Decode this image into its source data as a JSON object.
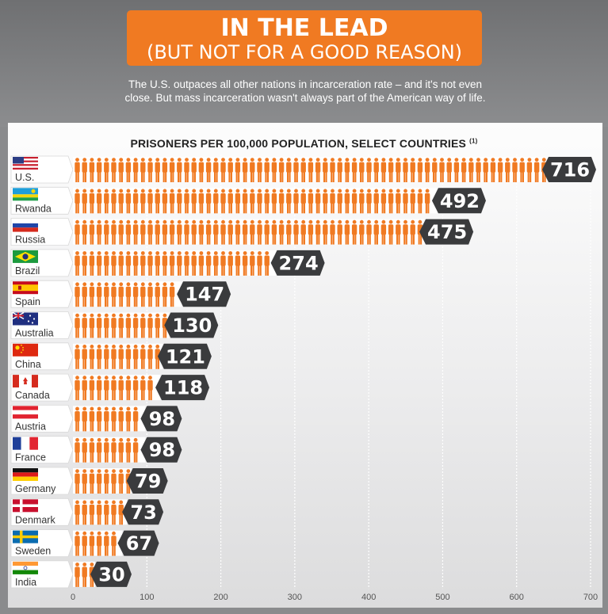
{
  "header": {
    "title": "IN THE LEAD",
    "subtitle": "(BUT NOT FOR A GOOD REASON)",
    "description_line1": "The U.S. outpaces all other nations in incarceration rate – and it's not even",
    "description_line2": "close. But mass incarceration wasn't always part of the American way of life."
  },
  "chart_data": {
    "type": "bar",
    "title": "PRISONERS PER 100,000 POPULATION, SELECT COUNTRIES",
    "title_note": "(1)",
    "categories": [
      "U.S.",
      "Rwanda",
      "Russia",
      "Brazil",
      "Spain",
      "Australia",
      "China",
      "Canada",
      "Austria",
      "France",
      "Germany",
      "Denmark",
      "Sweden",
      "India"
    ],
    "values": [
      716,
      492,
      475,
      274,
      147,
      130,
      121,
      118,
      98,
      98,
      79,
      73,
      67,
      30
    ],
    "xlim": [
      0,
      700
    ],
    "xticks": [
      0,
      100,
      200,
      300,
      400,
      500,
      600,
      700
    ],
    "grid": true,
    "flags": [
      "us",
      "rwanda",
      "russia",
      "brazil",
      "spain",
      "australia",
      "china",
      "canada",
      "austria",
      "france",
      "germany",
      "denmark",
      "sweden",
      "india"
    ],
    "colors": {
      "figure": "#f07a22",
      "value_tag": "#3a3b3d",
      "value_text": "#ffffff"
    }
  }
}
